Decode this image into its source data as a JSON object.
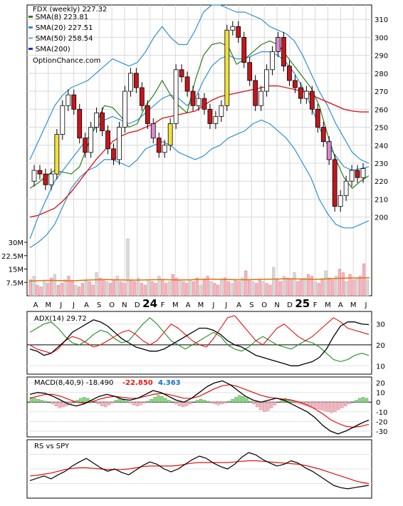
{
  "header": {
    "title": "FDX (weekly) 227.32",
    "watermark": "OptionChance.com",
    "legend": [
      {
        "label": "SMA(8) 223.81",
        "color": "#2e7d1a"
      },
      {
        "label": "SMA(20) 227.51",
        "color": "#2f8fd6"
      },
      {
        "label": "SMA(50) 258.54",
        "color": "#8ac3ee"
      },
      {
        "label": "SMA(200)",
        "color": "#1c2fb7"
      }
    ]
  },
  "chart_data": [
    {
      "type": "candlestick",
      "title": "FDX (weekly) 227.32",
      "x_ticks": [
        "A",
        "M",
        "J",
        "J",
        "A",
        "S",
        "O",
        "N",
        "D",
        "24",
        "F",
        "M",
        "A",
        "M",
        "J",
        "J",
        "A",
        "S",
        "O",
        "N",
        "D",
        "25",
        "F",
        "M",
        "A",
        "M",
        "J"
      ],
      "y_ticks": [
        200,
        210,
        220,
        230,
        240,
        250,
        260,
        270,
        280,
        290,
        300,
        310
      ],
      "ylim": [
        186,
        316
      ],
      "last_close": 227.32,
      "series": [
        {
          "name": "SMA(8) 223.81",
          "values": [
            216,
            219,
            223,
            226,
            225,
            224,
            228,
            240,
            252,
            262,
            261,
            256,
            250,
            252,
            262,
            268,
            276,
            268,
            262,
            258,
            276,
            290,
            296,
            297,
            295,
            285,
            288,
            292,
            296,
            298,
            296,
            290,
            284,
            278,
            272,
            262,
            246,
            232,
            222,
            216,
            220,
            223
          ]
        },
        {
          "name": "SMA(20) 227.51",
          "values": [
            188,
            200,
            210,
            220,
            226,
            232,
            238,
            244,
            250,
            254,
            256,
            254,
            252,
            254,
            258,
            262,
            266,
            268,
            266,
            262,
            266,
            276,
            284,
            288,
            290,
            288,
            288,
            290,
            292,
            292,
            290,
            286,
            280,
            272,
            262,
            250,
            240,
            234,
            228,
            226,
            227,
            228
          ]
        },
        {
          "name": "SMA(50) 258.54",
          "values": [
            200,
            201,
            203,
            205,
            209,
            214,
            220,
            226,
            232,
            237,
            242,
            245,
            247,
            248,
            250,
            252,
            255,
            256,
            257,
            258,
            259,
            262,
            265,
            267,
            268,
            269,
            270,
            271,
            272,
            273,
            273,
            272,
            271,
            270,
            268,
            266,
            264,
            262,
            260,
            259,
            258.5,
            258.5
          ]
        }
      ],
      "bollinger_upper": [
        232,
        242,
        252,
        262,
        268,
        272,
        274,
        276,
        280,
        284,
        288,
        286,
        284,
        286,
        292,
        300,
        306,
        300,
        296,
        296,
        304,
        314,
        318,
        318,
        316,
        314,
        314,
        312,
        310,
        306,
        304,
        302,
        298,
        290,
        280,
        270,
        262,
        252,
        244,
        236,
        232,
        230
      ],
      "bollinger_lower": [
        183,
        186,
        190,
        196,
        206,
        216,
        222,
        226,
        228,
        232,
        232,
        230,
        228,
        232,
        238,
        240,
        242,
        240,
        236,
        234,
        232,
        234,
        238,
        240,
        244,
        246,
        248,
        252,
        254,
        252,
        248,
        244,
        238,
        230,
        222,
        210,
        202,
        196,
        194,
        194,
        196,
        198
      ],
      "candles": [
        {
          "o": 220,
          "c": 226
        },
        {
          "o": 226,
          "c": 224
        },
        {
          "o": 224,
          "c": 218
        },
        {
          "o": 218,
          "c": 224
        },
        {
          "o": 224,
          "c": 246
        },
        {
          "o": 246,
          "c": 262
        },
        {
          "o": 262,
          "c": 268
        },
        {
          "o": 268,
          "c": 260
        },
        {
          "o": 260,
          "c": 244
        },
        {
          "o": 244,
          "c": 236
        },
        {
          "o": 236,
          "c": 250
        },
        {
          "o": 250,
          "c": 258
        },
        {
          "o": 258,
          "c": 248
        },
        {
          "o": 248,
          "c": 238
        },
        {
          "o": 238,
          "c": 232
        },
        {
          "o": 232,
          "c": 250
        },
        {
          "o": 250,
          "c": 270
        },
        {
          "o": 270,
          "c": 280
        },
        {
          "o": 280,
          "c": 272
        },
        {
          "o": 272,
          "c": 262
        },
        {
          "o": 262,
          "c": 252
        },
        {
          "o": 252,
          "c": 244
        },
        {
          "o": 244,
          "c": 236
        },
        {
          "o": 236,
          "c": 240
        },
        {
          "o": 240,
          "c": 252
        },
        {
          "o": 252,
          "c": 282
        },
        {
          "o": 282,
          "c": 278
        },
        {
          "o": 278,
          "c": 270
        },
        {
          "o": 270,
          "c": 262
        },
        {
          "o": 262,
          "c": 266
        },
        {
          "o": 266,
          "c": 260
        },
        {
          "o": 260,
          "c": 252
        },
        {
          "o": 252,
          "c": 256
        },
        {
          "o": 256,
          "c": 262
        },
        {
          "o": 262,
          "c": 304
        },
        {
          "o": 304,
          "c": 306
        },
        {
          "o": 306,
          "c": 300
        },
        {
          "o": 300,
          "c": 286
        },
        {
          "o": 286,
          "c": 276
        },
        {
          "o": 276,
          "c": 262
        },
        {
          "o": 262,
          "c": 270
        },
        {
          "o": 270,
          "c": 282
        },
        {
          "o": 282,
          "c": 292
        },
        {
          "o": 292,
          "c": 300
        },
        {
          "o": 300,
          "c": 284
        },
        {
          "o": 284,
          "c": 276
        },
        {
          "o": 276,
          "c": 272
        },
        {
          "o": 272,
          "c": 266
        },
        {
          "o": 266,
          "c": 270
        },
        {
          "o": 270,
          "c": 260
        },
        {
          "o": 260,
          "c": 250
        },
        {
          "o": 250,
          "c": 242
        },
        {
          "o": 242,
          "c": 232
        },
        {
          "o": 232,
          "c": 206
        },
        {
          "o": 206,
          "c": 212
        },
        {
          "o": 212,
          "c": 220
        },
        {
          "o": 220,
          "c": 226
        },
        {
          "o": 226,
          "c": 222
        },
        {
          "o": 222,
          "c": 227
        }
      ]
    },
    {
      "type": "bar",
      "title": "Volume",
      "y_ticks": [
        "30M",
        "22.5M",
        "15M",
        "7.5M"
      ],
      "y_tick_values": [
        30,
        22.5,
        15,
        7.5
      ],
      "ylim": [
        0,
        34
      ],
      "values": [
        9,
        11,
        6,
        5,
        8,
        7,
        10,
        12,
        6,
        7,
        9,
        11,
        8,
        6,
        5,
        7,
        9,
        8,
        6,
        13,
        10,
        9,
        8,
        7,
        9,
        11,
        8,
        7,
        32,
        9,
        8,
        10,
        7,
        6,
        9,
        8,
        7,
        11,
        9,
        7,
        8,
        12,
        10,
        9,
        8,
        7,
        9,
        8,
        10,
        6,
        9,
        11,
        8,
        7,
        6,
        9,
        10,
        8,
        7,
        9,
        8,
        10,
        14,
        9,
        8,
        7,
        9,
        8,
        7,
        6,
        16,
        9,
        8,
        11,
        10,
        9,
        13,
        8,
        9,
        10,
        12,
        11,
        8,
        7,
        9,
        14,
        10,
        9,
        11,
        15,
        13,
        8,
        12,
        9,
        10,
        11,
        18,
        9
      ],
      "sma_line": [
        8.2,
        8.4,
        8.6,
        8.6,
        8.5,
        8.4,
        8.5,
        8.7,
        8.9,
        9.0,
        9.1,
        9.0,
        8.9,
        8.8,
        8.8,
        8.9,
        9.0,
        9.1,
        9.0,
        8.9,
        8.9,
        9.0,
        9.2,
        9.3,
        9.3,
        9.2,
        9.1,
        9.0,
        9.0,
        9.1,
        9.2,
        9.3,
        9.4,
        9.5,
        9.5,
        9.4,
        9.3,
        9.2,
        9.4,
        9.6,
        9.8,
        9.9,
        10.0,
        10.0,
        10.1
      ]
    },
    {
      "type": "line",
      "title": "ADX(14) 29.72",
      "y_ticks": [
        10,
        20,
        30
      ],
      "ylim": [
        6,
        36
      ],
      "series": [
        {
          "name": "ADX(14) 29.72",
          "values": [
            18,
            17,
            15,
            16,
            19,
            22,
            26,
            28,
            30,
            32,
            31,
            29,
            26,
            23,
            21,
            19,
            18,
            17,
            17,
            18,
            20,
            22,
            24,
            26,
            28,
            28,
            27,
            25,
            22,
            20,
            19,
            17,
            15,
            14,
            13,
            12,
            11,
            10,
            10,
            11,
            12,
            14,
            18,
            24,
            29,
            31,
            31,
            30,
            29.7
          ]
        },
        {
          "name": "",
          "values": [
            20,
            18,
            17,
            16,
            18,
            22,
            24,
            23,
            21,
            19,
            20,
            22,
            24,
            26,
            27,
            25,
            22,
            20,
            22,
            26,
            30,
            28,
            25,
            22,
            20,
            19,
            23,
            28,
            33,
            34,
            30,
            26,
            22,
            20,
            24,
            28,
            30,
            27,
            24,
            22,
            24,
            27,
            30,
            33,
            31,
            28,
            27,
            26,
            25
          ]
        },
        {
          "name": "",
          "values": [
            26,
            28,
            30,
            31,
            28,
            24,
            21,
            20,
            22,
            25,
            27,
            26,
            23,
            21,
            22,
            26,
            30,
            33,
            30,
            26,
            22,
            20,
            18,
            20,
            22,
            24,
            26,
            24,
            20,
            18,
            17,
            19,
            22,
            24,
            22,
            20,
            19,
            18,
            20,
            22,
            21,
            19,
            16,
            13,
            12,
            13,
            15,
            16,
            15
          ]
        }
      ]
    },
    {
      "type": "bar",
      "title": "MACD(8,40,9) -18.490",
      "annotations": [
        "-22.850",
        "4.363"
      ],
      "y_ticks": [
        20,
        10,
        0,
        -10,
        -20,
        -30
      ],
      "ylim": [
        -36,
        26
      ],
      "histogram": [
        5,
        4,
        3,
        2,
        1,
        0,
        -2,
        -4,
        -6,
        -5,
        -4,
        -2,
        0,
        2,
        4,
        5,
        4,
        2,
        0,
        -2,
        -4,
        -5,
        -3,
        -1,
        2,
        4,
        3,
        1,
        -1,
        -3,
        -4,
        -3,
        -1,
        1,
        3,
        5,
        7,
        6,
        4,
        2,
        0,
        -2,
        -4,
        -5,
        -4,
        -2,
        0,
        2,
        3,
        2,
        1,
        -1,
        -2,
        -3,
        -2,
        -1,
        1,
        3,
        5,
        7,
        6,
        4,
        1,
        -2,
        -5,
        -8,
        -10,
        -9,
        -6,
        -3,
        0,
        2,
        4,
        3,
        1,
        -1,
        -2,
        -3,
        -4,
        -5,
        -6,
        -7,
        -8,
        -9,
        -10,
        -11,
        -10,
        -8,
        -6,
        -4,
        -2,
        0,
        2,
        4,
        5,
        4
      ],
      "series": [
        {
          "name": "MACD",
          "values": [
            8,
            10,
            9,
            6,
            2,
            -2,
            -4,
            -2,
            2,
            6,
            8,
            6,
            3,
            2,
            4,
            8,
            12,
            10,
            6,
            2,
            0,
            4,
            10,
            16,
            20,
            22,
            18,
            12,
            6,
            2,
            0,
            2,
            4,
            2,
            -2,
            -6,
            -10,
            -16,
            -24,
            -30,
            -33,
            -30,
            -26,
            -22,
            -18.5
          ]
        },
        {
          "name": "Signal",
          "values": [
            4,
            6,
            8,
            8,
            6,
            3,
            0,
            -1,
            0,
            3,
            5,
            6,
            5,
            4,
            4,
            6,
            8,
            9,
            8,
            6,
            4,
            4,
            6,
            10,
            14,
            17,
            18,
            16,
            13,
            10,
            7,
            5,
            4,
            3,
            2,
            0,
            -3,
            -7,
            -12,
            -18,
            -22,
            -25,
            -26,
            -25,
            -23
          ]
        }
      ]
    },
    {
      "type": "line",
      "title": "RS vs SPY",
      "series": [
        {
          "name": "RS vs SPY",
          "values": [
            0.3,
            0.34,
            0.38,
            0.33,
            0.4,
            0.46,
            0.55,
            0.62,
            0.68,
            0.6,
            0.52,
            0.46,
            0.5,
            0.44,
            0.4,
            0.48,
            0.56,
            0.62,
            0.58,
            0.5,
            0.45,
            0.5,
            0.58,
            0.66,
            0.72,
            0.68,
            0.6,
            0.54,
            0.5,
            0.58,
            0.7,
            0.78,
            0.74,
            0.66,
            0.6,
            0.55,
            0.58,
            0.64,
            0.6,
            0.52,
            0.46,
            0.38,
            0.3,
            0.22,
            0.18,
            0.16,
            0.18,
            0.2,
            0.22
          ]
        },
        {
          "name": "",
          "values": [
            0.38,
            0.39,
            0.41,
            0.43,
            0.46,
            0.49,
            0.51,
            0.52,
            0.52,
            0.51,
            0.5,
            0.49,
            0.49,
            0.49,
            0.5,
            0.52,
            0.54,
            0.55,
            0.55,
            0.55,
            0.55,
            0.56,
            0.58,
            0.6,
            0.61,
            0.61,
            0.61,
            0.61,
            0.61,
            0.62,
            0.63,
            0.64,
            0.64,
            0.63,
            0.62,
            0.61,
            0.6,
            0.59,
            0.58,
            0.56,
            0.53,
            0.5,
            0.46,
            0.42,
            0.38,
            0.34,
            0.3,
            0.27,
            0.25
          ]
        }
      ]
    }
  ]
}
